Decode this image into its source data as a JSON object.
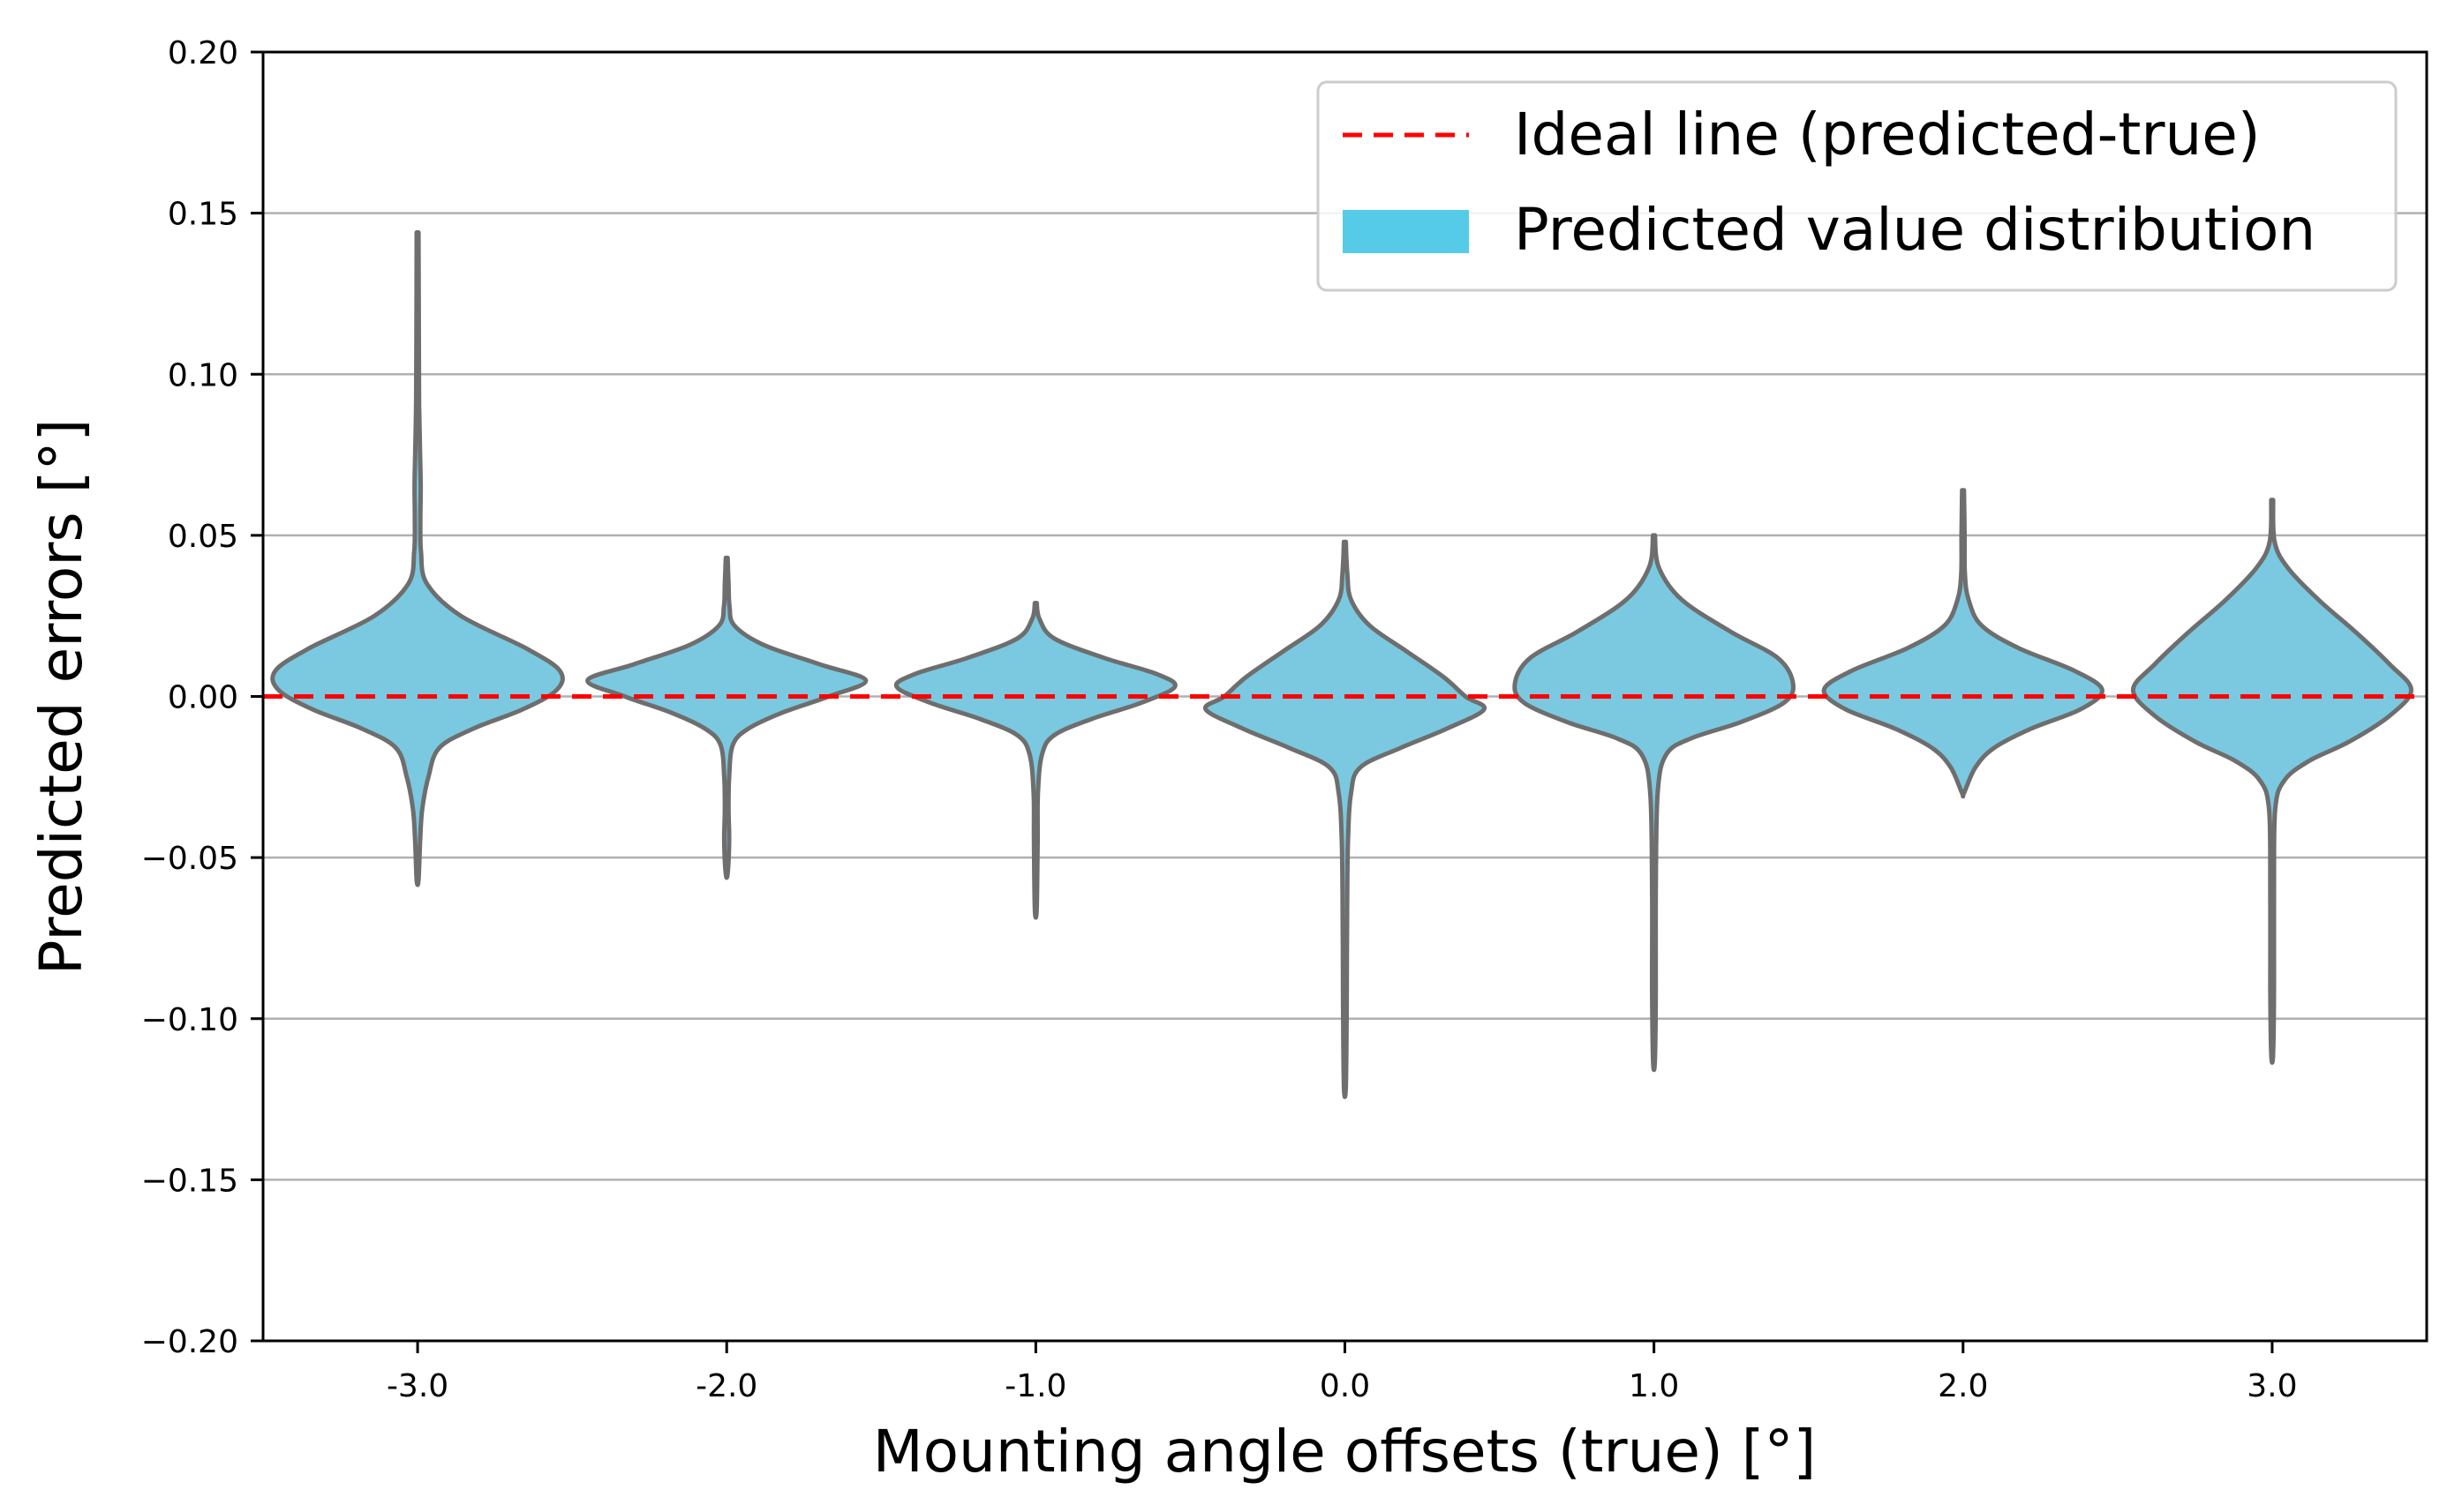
{
  "chart_data": {
    "type": "violin",
    "title": "",
    "xlabel": "Mounting angle offsets (true) [°]",
    "ylabel": "Predicted errors [°]",
    "categories": [
      "-3.0",
      "-2.0",
      "-1.0",
      "0.0",
      "1.0",
      "2.0",
      "3.0"
    ],
    "ylim": [
      -0.2,
      0.2
    ],
    "yticks": [
      0.2,
      0.15,
      0.1,
      0.05,
      0.0,
      -0.05,
      -0.1,
      -0.15,
      -0.2
    ],
    "ytick_labels": [
      "0.20",
      "0.15",
      "0.10",
      "0.05",
      "0.00",
      "−0.05",
      "−0.10",
      "−0.15",
      "−0.20"
    ],
    "grid": "horizontal",
    "ideal_line": {
      "y": 0.0,
      "label": "Ideal line (predicted-true)",
      "color": "#ff0000",
      "style": "dashed"
    },
    "distribution_label": "Predicted value distribution",
    "violin_fill": "#7ac9e0",
    "violin_edge": "#6e6e6e",
    "legend_patch_color": "#56cbe8",
    "legend_location": "top-right",
    "series": [
      {
        "name": "-3.0",
        "min": -0.057,
        "max": 0.144,
        "profile": [
          [
            0.144,
            0.003
          ],
          [
            0.11,
            0.004
          ],
          [
            0.09,
            0.005
          ],
          [
            0.075,
            0.008
          ],
          [
            0.065,
            0.01
          ],
          [
            0.055,
            0.009
          ],
          [
            0.045,
            0.011
          ],
          [
            0.035,
            0.03
          ],
          [
            0.025,
            0.14
          ],
          [
            0.015,
            0.35
          ],
          [
            0.008,
            0.46
          ],
          [
            0.002,
            0.45
          ],
          [
            -0.004,
            0.34
          ],
          [
            -0.01,
            0.18
          ],
          [
            -0.016,
            0.07
          ],
          [
            -0.025,
            0.035
          ],
          [
            -0.035,
            0.015
          ],
          [
            -0.045,
            0.008
          ],
          [
            -0.057,
            0.003
          ]
        ]
      },
      {
        "name": "-2.0",
        "min": -0.055,
        "max": 0.043,
        "profile": [
          [
            0.043,
            0.003
          ],
          [
            0.035,
            0.006
          ],
          [
            0.028,
            0.009
          ],
          [
            0.022,
            0.025
          ],
          [
            0.016,
            0.12
          ],
          [
            0.01,
            0.3
          ],
          [
            0.005,
            0.45
          ],
          [
            0.0,
            0.33
          ],
          [
            -0.005,
            0.18
          ],
          [
            -0.01,
            0.07
          ],
          [
            -0.015,
            0.02
          ],
          [
            -0.025,
            0.008
          ],
          [
            -0.035,
            0.006
          ],
          [
            -0.045,
            0.008
          ],
          [
            -0.055,
            0.003
          ]
        ]
      },
      {
        "name": "-1.0",
        "min": -0.066,
        "max": 0.029,
        "profile": [
          [
            0.029,
            0.003
          ],
          [
            0.024,
            0.012
          ],
          [
            0.018,
            0.06
          ],
          [
            0.012,
            0.22
          ],
          [
            0.007,
            0.39
          ],
          [
            0.003,
            0.45
          ],
          [
            -0.002,
            0.34
          ],
          [
            -0.007,
            0.18
          ],
          [
            -0.012,
            0.06
          ],
          [
            -0.018,
            0.02
          ],
          [
            -0.03,
            0.007
          ],
          [
            -0.045,
            0.006
          ],
          [
            -0.066,
            0.003
          ]
        ]
      },
      {
        "name": "0.0",
        "min": -0.121,
        "max": 0.048,
        "profile": [
          [
            0.048,
            0.003
          ],
          [
            0.038,
            0.008
          ],
          [
            0.03,
            0.02
          ],
          [
            0.022,
            0.08
          ],
          [
            0.014,
            0.2
          ],
          [
            0.006,
            0.32
          ],
          [
            0.0,
            0.39
          ],
          [
            -0.004,
            0.45
          ],
          [
            -0.01,
            0.33
          ],
          [
            -0.016,
            0.18
          ],
          [
            -0.022,
            0.05
          ],
          [
            -0.03,
            0.02
          ],
          [
            -0.045,
            0.01
          ],
          [
            -0.07,
            0.007
          ],
          [
            -0.095,
            0.006
          ],
          [
            -0.121,
            0.003
          ]
        ]
      },
      {
        "name": "1.0",
        "min": -0.113,
        "max": 0.05,
        "profile": [
          [
            0.05,
            0.003
          ],
          [
            0.04,
            0.016
          ],
          [
            0.03,
            0.09
          ],
          [
            0.02,
            0.25
          ],
          [
            0.012,
            0.4
          ],
          [
            0.004,
            0.45
          ],
          [
            -0.002,
            0.42
          ],
          [
            -0.008,
            0.28
          ],
          [
            -0.013,
            0.12
          ],
          [
            -0.018,
            0.04
          ],
          [
            -0.03,
            0.012
          ],
          [
            -0.06,
            0.006
          ],
          [
            -0.09,
            0.006
          ],
          [
            -0.113,
            0.003
          ]
        ]
      },
      {
        "name": "2.0",
        "min": -0.03,
        "max": 0.064,
        "profile": [
          [
            0.064,
            0.003
          ],
          [
            0.05,
            0.005
          ],
          [
            0.038,
            0.006
          ],
          [
            0.03,
            0.018
          ],
          [
            0.022,
            0.06
          ],
          [
            0.015,
            0.18
          ],
          [
            0.008,
            0.36
          ],
          [
            0.002,
            0.45
          ],
          [
            -0.004,
            0.38
          ],
          [
            -0.01,
            0.22
          ],
          [
            -0.016,
            0.1
          ],
          [
            -0.022,
            0.04
          ],
          [
            -0.03,
            0.003
          ]
        ]
      },
      {
        "name": "3.0",
        "min": -0.111,
        "max": 0.061,
        "profile": [
          [
            0.061,
            0.003
          ],
          [
            0.048,
            0.008
          ],
          [
            0.04,
            0.05
          ],
          [
            0.03,
            0.15
          ],
          [
            0.02,
            0.27
          ],
          [
            0.01,
            0.38
          ],
          [
            0.002,
            0.45
          ],
          [
            -0.006,
            0.38
          ],
          [
            -0.014,
            0.25
          ],
          [
            -0.02,
            0.12
          ],
          [
            -0.026,
            0.04
          ],
          [
            -0.035,
            0.01
          ],
          [
            -0.06,
            0.006
          ],
          [
            -0.09,
            0.006
          ],
          [
            -0.111,
            0.003
          ]
        ]
      }
    ]
  }
}
